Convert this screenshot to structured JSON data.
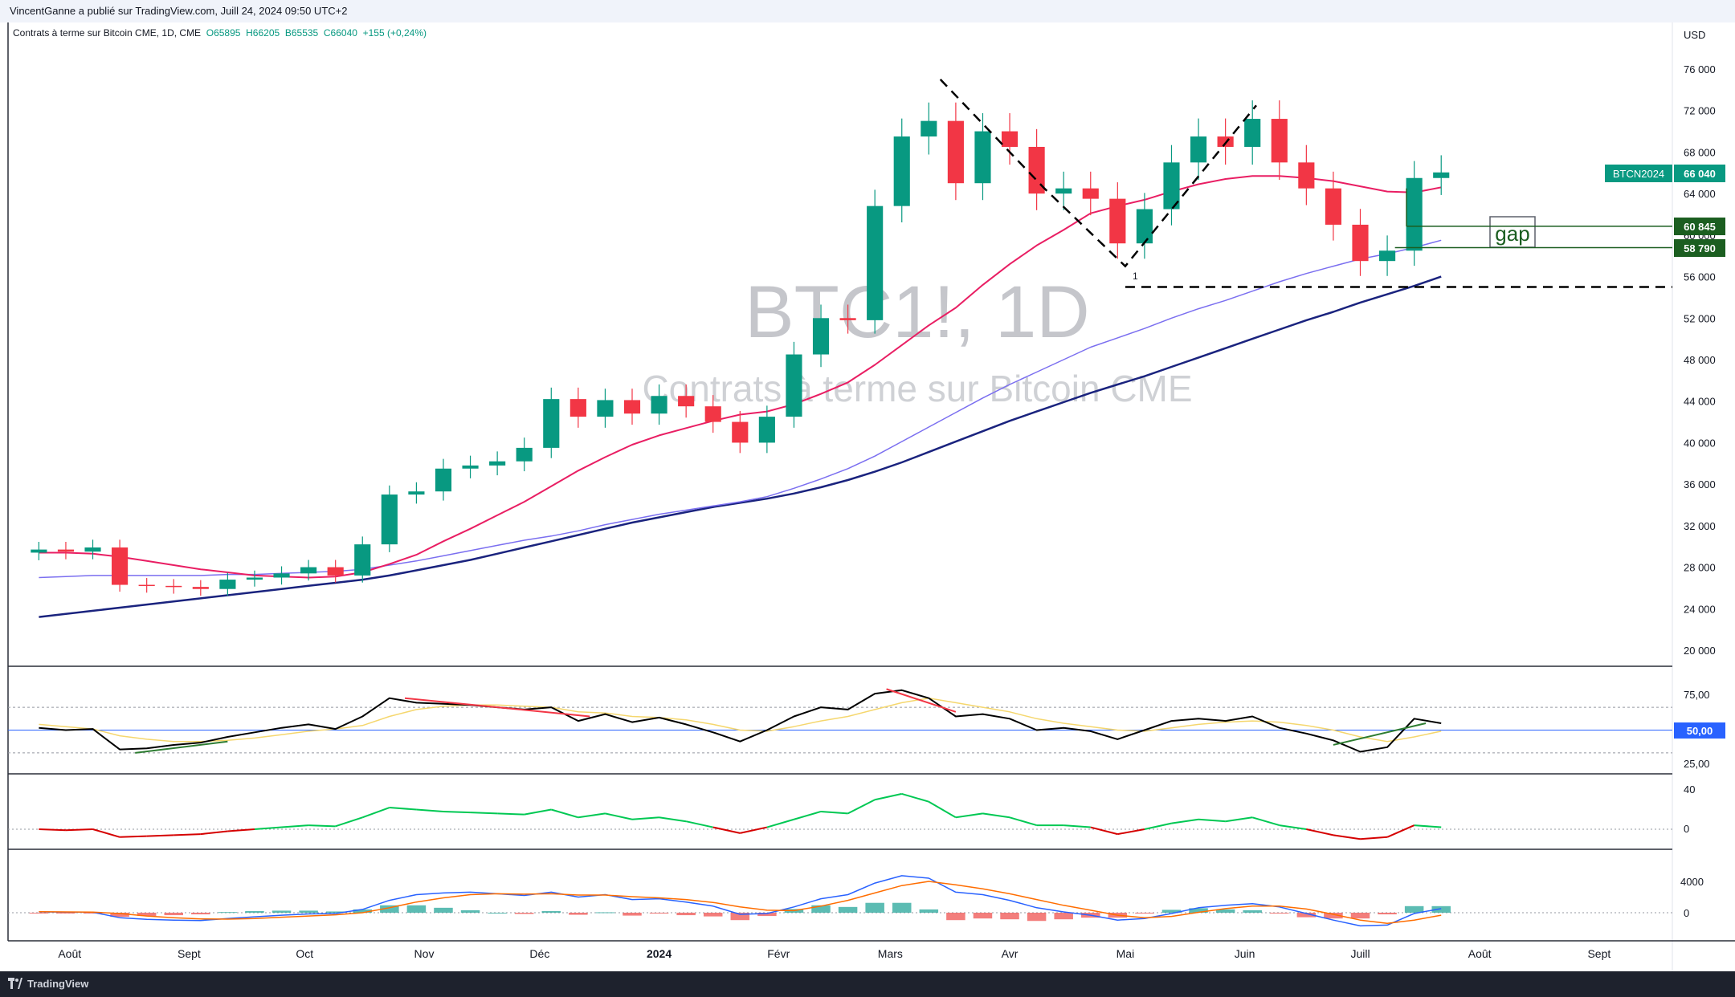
{
  "header": {
    "published": "VincentGanne a publié sur TradingView.com, Juill 24, 2024 09:50 UTC+2"
  },
  "legend": {
    "symbol": "Contrats à terme sur Bitcoin CME, 1D, CME",
    "open": "O65895",
    "high": "H66205",
    "low": "B65535",
    "close": "C66040",
    "change": "+155 (+0,24%)"
  },
  "watermark": {
    "ticker": "BTC1!, 1D",
    "name": "Contrats à terme sur Bitcoin CME"
  },
  "price_axis": {
    "currency": "USD",
    "ticks": [
      "76 000",
      "72 000",
      "68 000",
      "64 000",
      "60 000",
      "56 000",
      "52 000",
      "48 000",
      "44 000",
      "40 000",
      "36 000",
      "32 000",
      "28 000",
      "24 000",
      "20 000"
    ],
    "badges": [
      {
        "label": "BTCN2024",
        "value": "66 040",
        "color": "#089981"
      },
      {
        "value": "60 845",
        "color": "#1b5e20"
      },
      {
        "value": "58 790",
        "color": "#1b5e20"
      }
    ]
  },
  "annotations": {
    "gap_label": "gap",
    "wave_label": "1"
  },
  "rsi_axis": {
    "ticks": [
      "75,00",
      "25,00"
    ],
    "midline_badge": "50,00"
  },
  "osc_axis": {
    "ticks": [
      "40",
      "0"
    ]
  },
  "macd_axis": {
    "ticks": [
      "4000",
      "0"
    ]
  },
  "time_axis": {
    "labels": [
      "Août",
      "Sept",
      "Oct",
      "Nov",
      "Déc",
      "2024",
      "Févr",
      "Mars",
      "Avr",
      "Mai",
      "Juin",
      "Juill",
      "Août",
      "Sept"
    ]
  },
  "footer": {
    "brand": "TradingView"
  },
  "colors": {
    "up": "#089981",
    "down": "#f23645",
    "ma_short": "#e91e63",
    "ma_mid": "#7b6ff0",
    "ma_long": "#1a237e",
    "rsi": "#000000",
    "rsi_signal": "#f5d76e",
    "divergence_bear": "#f23645",
    "divergence_bull": "#2e7d32",
    "macd": "#2962ff",
    "macd_signal": "#ff6d00"
  },
  "chart_data": {
    "type": "candlestick",
    "symbol": "BTC1!",
    "interval": "1D",
    "ylim": [
      18000,
      78000
    ],
    "x": [
      "2023-07-24",
      "2023-07-31",
      "2023-08-07",
      "2023-08-14",
      "2023-08-21",
      "2023-08-28",
      "2023-09-04",
      "2023-09-11",
      "2023-09-18",
      "2023-09-25",
      "2023-10-02",
      "2023-10-09",
      "2023-10-16",
      "2023-10-23",
      "2023-10-30",
      "2023-11-06",
      "2023-11-13",
      "2023-11-20",
      "2023-11-27",
      "2023-12-04",
      "2023-12-11",
      "2023-12-18",
      "2023-12-25",
      "2024-01-01",
      "2024-01-08",
      "2024-01-15",
      "2024-01-22",
      "2024-01-29",
      "2024-02-05",
      "2024-02-12",
      "2024-02-19",
      "2024-02-26",
      "2024-03-04",
      "2024-03-11",
      "2024-03-18",
      "2024-03-25",
      "2024-04-01",
      "2024-04-08",
      "2024-04-15",
      "2024-04-22",
      "2024-04-29",
      "2024-05-06",
      "2024-05-13",
      "2024-05-20",
      "2024-05-27",
      "2024-06-03",
      "2024-06-10",
      "2024-06-17",
      "2024-06-24",
      "2024-07-01",
      "2024-07-08",
      "2024-07-15",
      "2024-07-22"
    ],
    "close": [
      29700,
      29500,
      29900,
      26300,
      26200,
      26100,
      25900,
      26800,
      27000,
      27400,
      28000,
      27200,
      30200,
      35000,
      35300,
      37500,
      37800,
      38200,
      39500,
      44200,
      42500,
      44100,
      42800,
      44500,
      43500,
      42000,
      40000,
      42500,
      48500,
      52000,
      51800,
      62800,
      69500,
      71000,
      65000,
      70000,
      68500,
      64000,
      64500,
      63500,
      59200,
      62500,
      67000,
      69500,
      68500,
      71200,
      67000,
      64500,
      61000,
      57500,
      58500,
      65500,
      66040
    ],
    "ma_short": [
      29400,
      29400,
      29300,
      29000,
      28600,
      28200,
      27800,
      27500,
      27200,
      27100,
      27000,
      27100,
      27500,
      28300,
      29200,
      30500,
      31700,
      33000,
      34300,
      35800,
      37300,
      38600,
      39800,
      40700,
      41400,
      42100,
      42700,
      43000,
      43700,
      44700,
      45800,
      47500,
      49400,
      51300,
      53000,
      55200,
      57200,
      59000,
      60500,
      62100,
      62800,
      63400,
      64200,
      64900,
      65400,
      65700,
      65700,
      65500,
      65200,
      64700,
      64200,
      64100,
      64600
    ],
    "ma_mid": [
      27000,
      27100,
      27200,
      27200,
      27200,
      27200,
      27200,
      27300,
      27300,
      27400,
      27500,
      27600,
      27800,
      28200,
      28600,
      29100,
      29600,
      30100,
      30600,
      31000,
      31500,
      32100,
      32600,
      33100,
      33500,
      33900,
      34300,
      34800,
      35600,
      36500,
      37500,
      38700,
      40100,
      41500,
      42900,
      44300,
      45600,
      46800,
      48000,
      49200,
      50100,
      51000,
      52000,
      52900,
      53700,
      54600,
      55500,
      56300,
      57000,
      57700,
      58200,
      58800,
      59500
    ],
    "ma_long": [
      23200,
      23500,
      23800,
      24100,
      24400,
      24700,
      25000,
      25300,
      25600,
      25900,
      26200,
      26500,
      26800,
      27200,
      27700,
      28200,
      28700,
      29300,
      29900,
      30500,
      31100,
      31700,
      32300,
      32800,
      33300,
      33800,
      34200,
      34600,
      35100,
      35700,
      36400,
      37200,
      38100,
      39100,
      40100,
      41100,
      42100,
      43000,
      43900,
      44800,
      45600,
      46400,
      47300,
      48200,
      49100,
      50000,
      50900,
      51800,
      52600,
      53500,
      54300,
      55100,
      56000
    ],
    "rsi": [
      52,
      50,
      51,
      33,
      34,
      37,
      39,
      44,
      48,
      52,
      55,
      51,
      62,
      78,
      74,
      73,
      72,
      70,
      68,
      70,
      58,
      64,
      57,
      61,
      55,
      48,
      40,
      50,
      62,
      70,
      68,
      82,
      85,
      78,
      62,
      64,
      60,
      50,
      52,
      49,
      42,
      50,
      58,
      60,
      58,
      62,
      52,
      47,
      41,
      31,
      35,
      60,
      56
    ],
    "rsi_signal": [
      55,
      53,
      51,
      45,
      42,
      40,
      40,
      41,
      43,
      46,
      49,
      51,
      54,
      62,
      68,
      71,
      72,
      72,
      71,
      70,
      66,
      65,
      62,
      61,
      59,
      55,
      50,
      49,
      53,
      58,
      62,
      68,
      74,
      78,
      74,
      70,
      66,
      60,
      56,
      53,
      50,
      49,
      52,
      55,
      57,
      58,
      57,
      54,
      50,
      44,
      40,
      44,
      49
    ],
    "divergences": [
      {
        "type": "bearish",
        "indicator": "rsi",
        "from": "2023-10-27",
        "to": "2023-12-14"
      },
      {
        "type": "bearish",
        "indicator": "rsi",
        "from": "2024-02-29",
        "to": "2024-03-18"
      },
      {
        "type": "bullish",
        "indicator": "rsi",
        "from": "2023-08-18",
        "to": "2023-09-11"
      },
      {
        "type": "bullish",
        "indicator": "rsi",
        "from": "2024-06-24",
        "to": "2024-07-18"
      }
    ],
    "levels": [
      {
        "name": "gap top",
        "value": 60845
      },
      {
        "name": "gap bottom",
        "value": 58790
      },
      {
        "name": "support",
        "value": 55000
      }
    ],
    "osc": [
      0,
      -1,
      0,
      -8,
      -7,
      -6,
      -5,
      -2,
      0,
      2,
      4,
      3,
      12,
      22,
      20,
      18,
      17,
      16,
      15,
      20,
      12,
      16,
      10,
      12,
      8,
      2,
      -4,
      2,
      10,
      18,
      16,
      30,
      36,
      28,
      12,
      16,
      12,
      4,
      4,
      2,
      -5,
      0,
      6,
      10,
      8,
      12,
      4,
      0,
      -6,
      -10,
      -8,
      4,
      2
    ],
    "macd": [
      100,
      80,
      60,
      -600,
      -800,
      -900,
      -950,
      -700,
      -500,
      -300,
      -150,
      -100,
      400,
      1500,
      2200,
      2400,
      2500,
      2300,
      2100,
      2500,
      1900,
      2200,
      1600,
      1700,
      1300,
      800,
      -200,
      -100,
      700,
      1700,
      2200,
      3600,
      4500,
      4200,
      2500,
      2200,
      1500,
      600,
      100,
      -300,
      -900,
      -700,
      -100,
      600,
      900,
      1100,
      700,
      -100,
      -900,
      -1600,
      -1500,
      -100,
      500
    ],
    "macd_signal": [
      120,
      100,
      80,
      -100,
      -400,
      -600,
      -750,
      -780,
      -700,
      -550,
      -400,
      -250,
      0,
      600,
      1300,
      1800,
      2200,
      2300,
      2250,
      2300,
      2150,
      2150,
      1950,
      1800,
      1600,
      1250,
      700,
      300,
      250,
      800,
      1500,
      2400,
      3300,
      3800,
      3400,
      2900,
      2300,
      1600,
      900,
      300,
      -300,
      -600,
      -450,
      50,
      500,
      800,
      800,
      450,
      -200,
      -900,
      -1300,
      -900,
      -300
    ]
  }
}
